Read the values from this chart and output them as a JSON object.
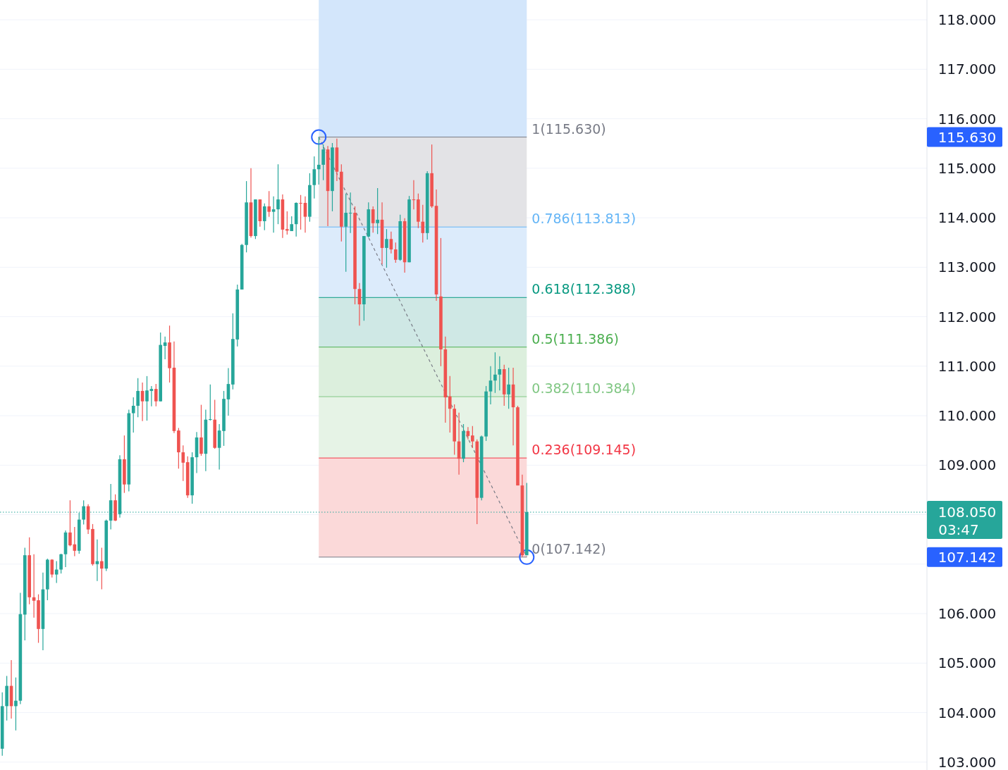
{
  "chart_data": {
    "type": "candlestick",
    "categories": [
      null,
      null,
      null,
      null,
      null,
      null,
      null,
      null,
      null,
      null,
      null,
      null,
      null,
      null,
      null,
      null,
      null,
      null,
      null,
      null,
      null,
      null,
      null,
      null,
      null,
      null,
      null,
      null,
      null,
      null,
      null,
      null,
      null,
      null,
      null,
      null,
      null,
      null,
      null,
      null,
      null,
      null,
      null,
      null,
      null,
      null,
      null,
      null,
      null,
      null,
      null,
      null,
      null,
      null,
      null,
      null,
      null,
      null,
      null,
      null,
      null,
      null,
      null,
      null,
      null,
      null,
      null,
      null,
      null,
      null,
      null,
      null,
      null,
      null,
      null,
      null,
      null,
      null,
      null,
      null,
      null,
      null,
      null,
      null,
      null,
      null,
      null,
      null,
      null,
      null,
      null,
      null,
      null,
      null,
      null,
      null,
      null,
      null,
      null,
      null,
      null,
      null,
      null,
      null,
      null,
      null,
      null,
      null,
      null,
      null,
      null,
      null,
      null,
      null,
      null,
      null,
      null,
      null,
      null,
      null,
      null,
      null,
      null,
      null,
      null,
      null,
      null,
      null,
      null,
      null,
      null,
      null,
      null,
      null,
      null,
      null,
      null,
      null,
      null,
      null,
      null,
      null,
      null,
      null,
      null,
      null,
      null,
      null,
      null,
      null,
      null,
      null,
      null,
      null,
      null,
      null,
      null,
      null,
      null,
      null,
      null,
      null,
      null,
      null,
      null,
      null,
      null,
      null,
      null,
      null,
      null,
      null,
      null,
      null,
      null,
      null,
      null,
      null,
      null,
      null,
      null,
      null,
      null,
      null,
      null,
      null,
      null,
      null,
      null,
      null,
      null,
      null,
      null,
      null,
      null,
      null,
      null,
      null,
      null,
      null,
      null,
      null,
      null,
      null,
      null
    ],
    "ohlc": [
      [
        103.27,
        104.41,
        103.13,
        104.13
      ],
      [
        104.13,
        104.74,
        103.84,
        104.54
      ],
      [
        104.54,
        105.06,
        103.88,
        104.13
      ],
      [
        104.13,
        104.71,
        103.64,
        104.24
      ],
      [
        104.24,
        106.42,
        104.17,
        105.99
      ],
      [
        105.98,
        107.33,
        105.46,
        107.18
      ],
      [
        107.18,
        107.54,
        106.19,
        106.33
      ],
      [
        106.33,
        107.2,
        105.92,
        106.26
      ],
      [
        106.27,
        106.39,
        105.41,
        105.69
      ],
      [
        105.69,
        106.83,
        105.26,
        106.49
      ],
      [
        106.49,
        107.11,
        106.27,
        107.09
      ],
      [
        107.09,
        107.1,
        106.73,
        106.79
      ],
      [
        106.79,
        107.06,
        106.62,
        106.89
      ],
      [
        106.89,
        107.21,
        106.81,
        107.2
      ],
      [
        107.2,
        107.68,
        106.94,
        107.64
      ],
      [
        107.64,
        108.29,
        107.36,
        107.38
      ],
      [
        107.4,
        107.75,
        107.16,
        107.27
      ],
      [
        107.27,
        108.04,
        107.21,
        107.9
      ],
      [
        107.9,
        108.29,
        107.8,
        108.17
      ],
      [
        108.17,
        108.21,
        107.61,
        107.7
      ],
      [
        107.71,
        107.81,
        106.97,
        107.0
      ],
      [
        107.0,
        107.5,
        106.66,
        107.06
      ],
      [
        107.06,
        107.33,
        106.49,
        106.91
      ],
      [
        106.91,
        107.9,
        106.86,
        107.88
      ],
      [
        107.88,
        108.62,
        107.7,
        108.29
      ],
      [
        108.29,
        108.41,
        107.87,
        107.88
      ],
      [
        108.01,
        109.2,
        107.94,
        109.12
      ],
      [
        109.12,
        109.6,
        108.44,
        108.61
      ],
      [
        108.61,
        110.12,
        108.47,
        110.05
      ],
      [
        110.05,
        110.37,
        109.66,
        110.2
      ],
      [
        110.2,
        110.76,
        109.97,
        110.5
      ],
      [
        110.5,
        110.67,
        109.89,
        110.29
      ],
      [
        110.29,
        110.8,
        109.9,
        110.51
      ],
      [
        110.5,
        110.6,
        110.19,
        110.54
      ],
      [
        110.54,
        110.64,
        110.19,
        110.29
      ],
      [
        110.29,
        111.68,
        110.29,
        111.43
      ],
      [
        111.41,
        111.6,
        111.14,
        111.48
      ],
      [
        111.48,
        111.82,
        110.67,
        110.96
      ],
      [
        110.97,
        111.5,
        109.65,
        109.69
      ],
      [
        109.7,
        109.75,
        108.93,
        109.26
      ],
      [
        109.26,
        109.4,
        108.68,
        109.05
      ],
      [
        109.06,
        109.18,
        108.34,
        108.39
      ],
      [
        108.39,
        109.26,
        108.22,
        109.16
      ],
      [
        109.16,
        109.67,
        108.84,
        109.56
      ],
      [
        109.56,
        110.22,
        109.19,
        109.23
      ],
      [
        109.23,
        110.12,
        108.88,
        109.92
      ],
      [
        109.92,
        110.63,
        109.9,
        109.93
      ],
      [
        109.92,
        110.32,
        109.33,
        109.35
      ],
      [
        109.35,
        109.83,
        108.91,
        109.7
      ],
      [
        109.69,
        110.5,
        109.39,
        110.34
      ],
      [
        110.33,
        110.96,
        110.0,
        110.64
      ],
      [
        110.63,
        112.07,
        110.53,
        111.55
      ],
      [
        111.54,
        112.65,
        111.4,
        112.55
      ],
      [
        112.55,
        113.47,
        112.55,
        113.45
      ],
      [
        113.45,
        114.74,
        113.3,
        114.31
      ],
      [
        114.31,
        115.0,
        113.6,
        113.63
      ],
      [
        113.63,
        114.37,
        113.57,
        114.37
      ],
      [
        114.37,
        114.37,
        113.82,
        113.93
      ],
      [
        113.93,
        114.29,
        113.75,
        114.23
      ],
      [
        114.23,
        114.54,
        114.02,
        114.12
      ],
      [
        114.12,
        114.43,
        113.7,
        114.17
      ],
      [
        114.17,
        115.08,
        113.87,
        114.37
      ],
      [
        114.37,
        114.47,
        113.59,
        113.76
      ],
      [
        113.77,
        114.13,
        113.66,
        113.74
      ],
      [
        113.73,
        114.03,
        113.73,
        113.87
      ],
      [
        113.87,
        114.31,
        113.62,
        114.3
      ],
      [
        114.3,
        114.46,
        113.76,
        114.29
      ],
      [
        114.3,
        114.43,
        113.7,
        114.02
      ],
      [
        114.02,
        114.9,
        113.92,
        114.66
      ],
      [
        114.66,
        115.24,
        114.39,
        114.98
      ],
      [
        114.98,
        115.63,
        114.67,
        115.07
      ],
      [
        115.07,
        115.48,
        114.76,
        115.38
      ],
      [
        115.38,
        115.45,
        113.83,
        114.54
      ],
      [
        114.54,
        115.51,
        114.13,
        115.42
      ],
      [
        115.42,
        115.6,
        114.74,
        114.93
      ],
      [
        114.93,
        115.08,
        113.52,
        113.82
      ],
      [
        113.82,
        114.49,
        112.91,
        114.1
      ],
      [
        114.09,
        114.51,
        113.69,
        114.1
      ],
      [
        114.1,
        114.23,
        112.25,
        112.56
      ],
      [
        112.56,
        112.68,
        111.82,
        112.25
      ],
      [
        112.25,
        113.63,
        111.92,
        113.63
      ],
      [
        113.62,
        114.31,
        113.6,
        114.17
      ],
      [
        114.17,
        114.23,
        113.7,
        113.89
      ],
      [
        113.89,
        114.6,
        113.67,
        113.96
      ],
      [
        113.96,
        114.31,
        113.06,
        113.39
      ],
      [
        113.39,
        113.77,
        112.99,
        113.57
      ],
      [
        113.57,
        113.72,
        113.28,
        113.36
      ],
      [
        113.36,
        113.5,
        113.09,
        113.15
      ],
      [
        113.15,
        114.06,
        113.13,
        113.93
      ],
      [
        113.93,
        113.99,
        112.89,
        113.1
      ],
      [
        113.1,
        114.44,
        113.1,
        114.37
      ],
      [
        114.37,
        114.76,
        114.17,
        114.36
      ],
      [
        114.37,
        114.49,
        113.79,
        113.92
      ],
      [
        113.92,
        114.26,
        113.5,
        113.69
      ],
      [
        113.69,
        114.94,
        113.56,
        114.9
      ],
      [
        114.9,
        115.48,
        114.2,
        114.23
      ],
      [
        114.24,
        114.57,
        112.32,
        112.45
      ],
      [
        112.41,
        113.59,
        111.0,
        111.34
      ],
      [
        111.34,
        111.6,
        109.86,
        110.37
      ],
      [
        110.39,
        110.8,
        109.66,
        110.14
      ],
      [
        110.14,
        110.23,
        109.21,
        109.48
      ],
      [
        109.48,
        110.06,
        108.81,
        109.13
      ],
      [
        109.13,
        109.83,
        109.06,
        109.69
      ],
      [
        109.69,
        109.77,
        109.52,
        109.59
      ],
      [
        109.6,
        109.79,
        109.35,
        109.48
      ],
      [
        109.48,
        109.52,
        107.81,
        108.34
      ],
      [
        108.34,
        109.6,
        108.29,
        109.58
      ],
      [
        109.58,
        110.6,
        109.49,
        110.49
      ],
      [
        110.49,
        111.0,
        110.23,
        110.71
      ],
      [
        110.71,
        111.28,
        110.46,
        110.83
      ],
      [
        110.83,
        111.2,
        110.51,
        110.94
      ],
      [
        110.94,
        111.03,
        110.2,
        110.43
      ],
      [
        110.43,
        110.97,
        110.14,
        110.63
      ],
      [
        110.63,
        110.97,
        109.4,
        110.17
      ],
      [
        110.17,
        110.2,
        108.59,
        108.59
      ],
      [
        108.59,
        108.81,
        107.142,
        107.18
      ],
      [
        107.18,
        108.64,
        107.18,
        108.05
      ],
      null,
      null,
      null,
      null,
      null,
      null,
      null,
      null,
      null,
      null,
      null,
      null,
      null,
      null,
      null,
      null,
      null,
      null,
      null,
      null,
      null,
      null,
      null,
      null,
      null,
      null,
      null,
      null,
      null,
      null,
      null,
      null,
      null,
      null,
      null,
      null,
      null,
      null,
      null,
      null,
      null,
      null,
      null,
      null,
      null,
      null,
      null,
      null,
      null,
      null,
      null,
      null,
      null,
      null,
      null,
      null,
      null,
      null,
      null,
      null,
      null,
      null,
      null,
      null,
      null,
      null,
      null,
      null,
      null,
      null,
      null,
      null,
      null,
      null,
      null,
      null,
      null,
      null,
      null,
      null,
      null,
      null,
      null,
      null,
      null,
      null,
      null,
      null
    ],
    "ylim": [
      102.84,
      118.4
    ],
    "yticks": [
      {
        "value": 103,
        "label": "103.000"
      },
      {
        "value": 104,
        "label": "104.000"
      },
      {
        "value": 105,
        "label": "105.000"
      },
      {
        "value": 106,
        "label": "106.000"
      },
      {
        "value": 107,
        "label": null
      },
      {
        "value": 108,
        "label": null
      },
      {
        "value": 109,
        "label": "109.000"
      },
      {
        "value": 110,
        "label": "110.000"
      },
      {
        "value": 111,
        "label": "111.000"
      },
      {
        "value": 112,
        "label": "112.000"
      },
      {
        "value": 113,
        "label": "113.000"
      },
      {
        "value": 114,
        "label": "114.000"
      },
      {
        "value": 115,
        "label": "115.000"
      },
      {
        "value": 116,
        "label": "116.000"
      },
      {
        "value": 117,
        "label": "117.000"
      },
      {
        "value": 118,
        "label": "118.000"
      }
    ],
    "grid": "y",
    "tick_labels": "y",
    "bands": [
      {
        "axis": "y",
        "from": 115.63,
        "to": 118.4,
        "color": "#d3e6fb"
      },
      {
        "axis": "y",
        "from": 113.813,
        "to": 115.63,
        "color": "#e3e3e6"
      },
      {
        "axis": "y",
        "from": 112.388,
        "to": 113.813,
        "color": "#dcebfb"
      },
      {
        "axis": "y",
        "from": 111.386,
        "to": 112.388,
        "color": "#cfe8e5"
      },
      {
        "axis": "y",
        "from": 110.384,
        "to": 111.386,
        "color": "#dcefdd"
      },
      {
        "axis": "y",
        "from": 109.145,
        "to": 110.384,
        "color": "#e6f3e6"
      },
      {
        "axis": "y",
        "from": 107.142,
        "to": 109.145,
        "color": "#fbd9d9"
      }
    ],
    "ref_lines": [
      {
        "axis": "y",
        "value": 115.63,
        "label": "1(115.630)",
        "color": "#787b86"
      },
      {
        "axis": "y",
        "value": 113.813,
        "label": "0.786(113.813)",
        "color": "#64b5f6"
      },
      {
        "axis": "y",
        "value": 112.388,
        "label": "0.618(112.388)",
        "color": "#089981"
      },
      {
        "axis": "y",
        "value": 111.386,
        "label": "0.5(111.386)",
        "color": "#4caf50"
      },
      {
        "axis": "y",
        "value": 110.384,
        "label": "0.382(110.384)",
        "color": "#81c784"
      },
      {
        "axis": "y",
        "value": 109.145,
        "label": "0.236(109.145)",
        "color": "#f23645"
      },
      {
        "axis": "y",
        "value": 107.142,
        "label": "0(107.142)",
        "color": "#787b86"
      },
      {
        "axis": "y",
        "value": 108.05,
        "label": "108.050",
        "color": "#26a69a",
        "line_style": "dotted"
      }
    ],
    "annotations": [
      "115.630",
      "107.142",
      "03:47"
    ]
  }
}
